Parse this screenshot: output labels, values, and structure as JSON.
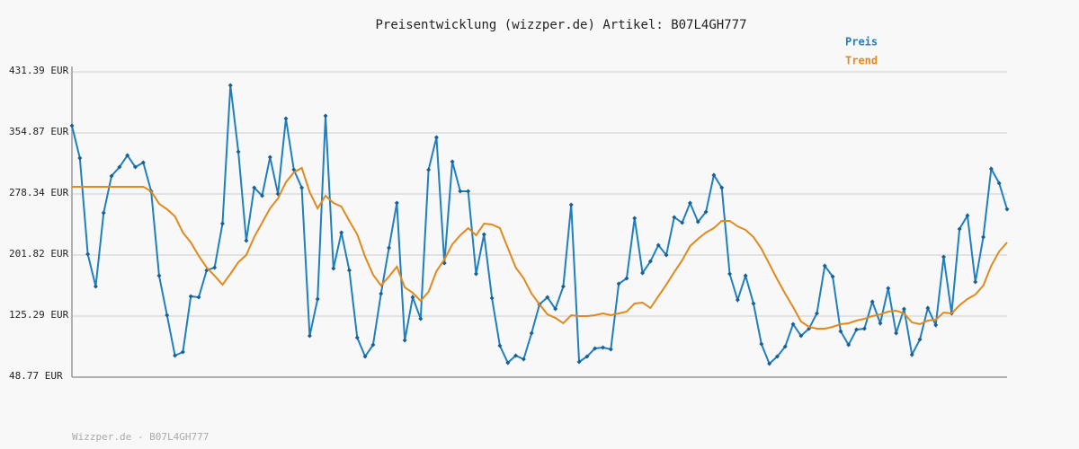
{
  "chart_data": {
    "type": "line",
    "title": "Preisentwicklung (wizzper.de) Artikel: B07L4GH777",
    "footer": "Wizzper.de - B07L4GH777",
    "ylim": [
      48.77,
      431.39
    ],
    "yticks": [
      {
        "value": 48.77,
        "label": "48.77 EUR"
      },
      {
        "value": 125.29,
        "label": "125.29 EUR"
      },
      {
        "value": 201.82,
        "label": "201.82 EUR"
      },
      {
        "value": 278.34,
        "label": "278.34 EUR"
      },
      {
        "value": 354.87,
        "label": "354.87 EUR"
      },
      {
        "value": 431.39,
        "label": "431.39 EUR"
      }
    ],
    "grid": true,
    "legend": "top-right",
    "series": [
      {
        "name": "Preis",
        "color": "#1f7fbf",
        "markers": true,
        "values": [
          363.9,
          323.4,
          203.0,
          162.4,
          254.7,
          300.9,
          312.1,
          326.7,
          312.1,
          317.7,
          281.7,
          175.9,
          126.4,
          75.8,
          80.3,
          150.1,
          148.9,
          182.7,
          186.1,
          241.2,
          414.5,
          331.2,
          219.8,
          286.2,
          276.1,
          324.5,
          278.3,
          372.9,
          308.7,
          286.2,
          100.5,
          146.7,
          376.3,
          184.9,
          230.0,
          182.7,
          98.3,
          74.7,
          89.3,
          153.4,
          210.8,
          267.1,
          94.9,
          148.9,
          121.9,
          308.7,
          349.3,
          191.7,
          318.9,
          281.7,
          281.7,
          178.2,
          227.7,
          147.8,
          88.2,
          66.8,
          75.8,
          71.3,
          103.9,
          139.9,
          148.9,
          134.3,
          162.4,
          264.8,
          67.9,
          74.7,
          84.8,
          85.9,
          83.7,
          165.8,
          172.6,
          248.0,
          179.3,
          193.9,
          214.2,
          201.8,
          249.1,
          242.3,
          267.1,
          243.5,
          255.8,
          302.0,
          286.2,
          178.2,
          145.5,
          175.9,
          141.1,
          90.4,
          65.6,
          74.7,
          87.0,
          115.2,
          100.5,
          109.5,
          128.7,
          188.3,
          174.8,
          106.2,
          89.3,
          108.4,
          109.5,
          143.3,
          116.3,
          160.2,
          103.9,
          134.3,
          76.9,
          96.0,
          135.4,
          114.0,
          199.6,
          128.7,
          234.5,
          251.3,
          168.1,
          224.3,
          309.9,
          291.9,
          259.2
        ]
      },
      {
        "name": "Trend",
        "color": "#e08a1e",
        "markers": false,
        "values": [
          287.4,
          287.4,
          287.4,
          287.4,
          287.4,
          287.4,
          287.4,
          287.4,
          287.4,
          287.4,
          281.7,
          266.0,
          259.2,
          250.2,
          230.0,
          217.6,
          200.7,
          186.1,
          175.9,
          164.7,
          178.2,
          192.8,
          201.8,
          224.3,
          242.3,
          260.3,
          272.7,
          293.0,
          305.4,
          311.0,
          280.6,
          260.3,
          276.1,
          267.1,
          262.6,
          244.6,
          227.7,
          199.6,
          177.1,
          163.6,
          174.8,
          187.2,
          161.3,
          154.5,
          144.4,
          155.7,
          181.6,
          196.2,
          215.3,
          226.6,
          235.6,
          226.6,
          241.2,
          240.1,
          235.6,
          210.8,
          186.1,
          172.6,
          153.4,
          139.9,
          127.5,
          123.0,
          116.3,
          126.4,
          125.3,
          125.3,
          126.4,
          128.7,
          126.4,
          128.7,
          130.9,
          141.1,
          142.2,
          135.4,
          150.1,
          164.7,
          180.4,
          195.1,
          213.1,
          222.1,
          230.0,
          235.6,
          244.6,
          244.6,
          237.8,
          233.3,
          224.3,
          209.7,
          190.6,
          171.4,
          153.4,
          136.5,
          118.5,
          111.8,
          109.5,
          109.5,
          111.8,
          115.2,
          116.3,
          119.7,
          121.9,
          125.3,
          127.5,
          130.9,
          132.0,
          128.7,
          117.4,
          115.2,
          119.7,
          120.8,
          129.8,
          128.7,
          138.8,
          146.7,
          152.3,
          163.6,
          188.3,
          206.3,
          217.6
        ]
      }
    ]
  }
}
